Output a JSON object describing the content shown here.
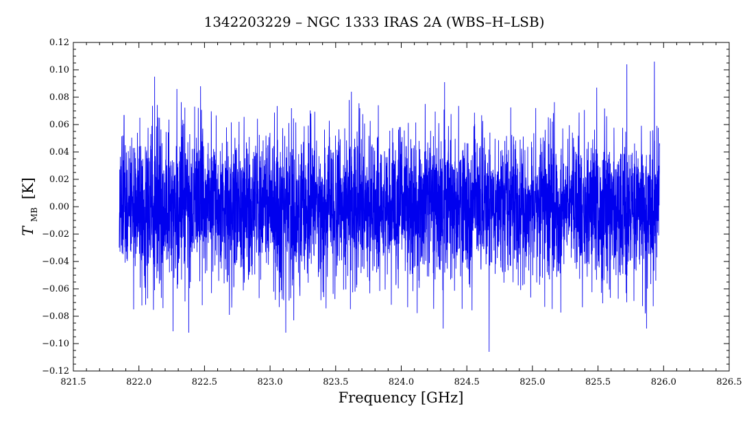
{
  "chart_data": {
    "type": "line",
    "title": "1342203229 – NGC 1333 IRAS 2A (WBS–H–LSB)",
    "xlabel": "Frequency [GHz]",
    "ylabel_main": "T",
    "ylabel_sub": "MB",
    "ylabel_unit": "[K]",
    "xlim": [
      821.5,
      826.5
    ],
    "ylim": [
      -0.12,
      0.12
    ],
    "x_ticks": [
      821.5,
      822.0,
      822.5,
      823.0,
      823.5,
      824.0,
      824.5,
      825.0,
      825.5,
      826.0,
      826.5
    ],
    "x_tick_labels": [
      "821.5",
      "822.0",
      "822.5",
      "823.0",
      "823.5",
      "824.0",
      "824.5",
      "825.0",
      "825.5",
      "826.0",
      "826.5"
    ],
    "y_ticks": [
      -0.12,
      -0.1,
      -0.08,
      -0.06,
      -0.04,
      -0.02,
      0.0,
      0.02,
      0.04,
      0.06,
      0.08,
      0.1,
      0.12
    ],
    "y_tick_labels": [
      "−0.12",
      "−0.10",
      "−0.08",
      "−0.06",
      "−0.04",
      "−0.02",
      "0.00",
      "0.02",
      "0.04",
      "0.06",
      "0.08",
      "0.10",
      "0.12"
    ],
    "grid": false,
    "series": [
      {
        "color": "#0000ee",
        "x_range": [
          821.85,
          825.97
        ],
        "noise_rms": 0.03,
        "peaks": [
          {
            "x": 822.38,
            "y": 0.104
          },
          {
            "x": 825.93,
            "y": 0.106
          },
          {
            "x": 825.72,
            "y": 0.104
          },
          {
            "x": 822.12,
            "y": 0.095
          },
          {
            "x": 825.49,
            "y": 0.087
          },
          {
            "x": 822.29,
            "y": 0.086
          },
          {
            "x": 822.47,
            "y": 0.088
          },
          {
            "x": 824.33,
            "y": 0.091
          },
          {
            "x": 823.62,
            "y": 0.084
          },
          {
            "x": 824.67,
            "y": -0.106
          },
          {
            "x": 823.12,
            "y": -0.092
          },
          {
            "x": 822.38,
            "y": -0.092
          },
          {
            "x": 822.26,
            "y": -0.091
          },
          {
            "x": 823.18,
            "y": -0.083
          },
          {
            "x": 822.69,
            "y": -0.079
          },
          {
            "x": 824.32,
            "y": -0.089
          },
          {
            "x": 825.87,
            "y": -0.089
          },
          {
            "x": 821.96,
            "y": -0.075
          }
        ]
      }
    ]
  }
}
